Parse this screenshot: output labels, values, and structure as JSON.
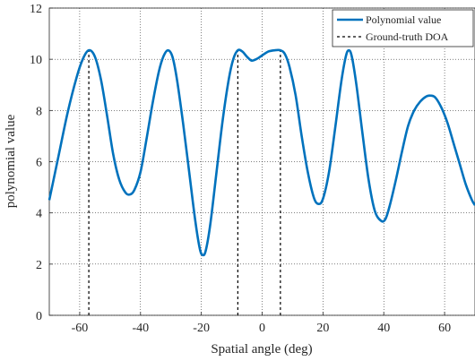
{
  "chart_data": {
    "type": "line",
    "title": "",
    "xlabel": "Spatial angle (deg)",
    "ylabel": "polynomial value",
    "xlim": [
      -70,
      70
    ],
    "ylim": [
      0,
      12
    ],
    "xticks": [
      -60,
      -40,
      -20,
      0,
      20,
      40,
      60
    ],
    "yticks": [
      0,
      2,
      4,
      6,
      8,
      10,
      12
    ],
    "grid": true,
    "legend_position": "top-right",
    "series": [
      {
        "name": "Polynomial value",
        "style": "solid",
        "color": "#0072BD",
        "points": [
          [
            -70,
            4.5
          ],
          [
            -67,
            6.2
          ],
          [
            -64,
            7.9
          ],
          [
            -61,
            9.3
          ],
          [
            -59,
            10.0
          ],
          [
            -57,
            10.35
          ],
          [
            -55,
            10.1
          ],
          [
            -53,
            9.2
          ],
          [
            -51,
            7.8
          ],
          [
            -49,
            6.3
          ],
          [
            -47,
            5.3
          ],
          [
            -45,
            4.8
          ],
          [
            -43.5,
            4.72
          ],
          [
            -42,
            4.9
          ],
          [
            -40,
            5.6
          ],
          [
            -38,
            6.9
          ],
          [
            -36,
            8.3
          ],
          [
            -34,
            9.5
          ],
          [
            -32.5,
            10.1
          ],
          [
            -31,
            10.35
          ],
          [
            -29.5,
            10.1
          ],
          [
            -28,
            9.2
          ],
          [
            -26,
            7.5
          ],
          [
            -24,
            5.6
          ],
          [
            -22,
            3.7
          ],
          [
            -20.5,
            2.6
          ],
          [
            -19.5,
            2.35
          ],
          [
            -18.5,
            2.55
          ],
          [
            -17,
            3.6
          ],
          [
            -15,
            5.6
          ],
          [
            -13,
            7.6
          ],
          [
            -11,
            9.2
          ],
          [
            -9.5,
            10.0
          ],
          [
            -8,
            10.35
          ],
          [
            -6.5,
            10.3
          ],
          [
            -5,
            10.1
          ],
          [
            -3.5,
            9.95
          ],
          [
            -2,
            10.0
          ],
          [
            0,
            10.15
          ],
          [
            2,
            10.3
          ],
          [
            4,
            10.35
          ],
          [
            6,
            10.35
          ],
          [
            7.5,
            10.2
          ],
          [
            9,
            9.7
          ],
          [
            11,
            8.6
          ],
          [
            13,
            7.0
          ],
          [
            15,
            5.6
          ],
          [
            17,
            4.6
          ],
          [
            18.5,
            4.35
          ],
          [
            20,
            4.55
          ],
          [
            22,
            5.6
          ],
          [
            24,
            7.3
          ],
          [
            26,
            9.1
          ],
          [
            27.5,
            10.1
          ],
          [
            28.5,
            10.35
          ],
          [
            29.5,
            10.1
          ],
          [
            31,
            9.0
          ],
          [
            33,
            7.1
          ],
          [
            35,
            5.3
          ],
          [
            37,
            4.1
          ],
          [
            39,
            3.7
          ],
          [
            40.5,
            3.75
          ],
          [
            42,
            4.3
          ],
          [
            44,
            5.3
          ],
          [
            46,
            6.4
          ],
          [
            48,
            7.4
          ],
          [
            50,
            8.0
          ],
          [
            52,
            8.35
          ],
          [
            54,
            8.55
          ],
          [
            55.5,
            8.58
          ],
          [
            57,
            8.5
          ],
          [
            59,
            8.1
          ],
          [
            61,
            7.5
          ],
          [
            63,
            6.7
          ],
          [
            65,
            5.9
          ],
          [
            67,
            5.1
          ],
          [
            69,
            4.5
          ],
          [
            70,
            4.3
          ]
        ]
      },
      {
        "name": "Ground-truth DOA",
        "style": "dashed",
        "color": "#000000",
        "doa_angles": [
          -57,
          -8,
          6
        ]
      }
    ]
  }
}
